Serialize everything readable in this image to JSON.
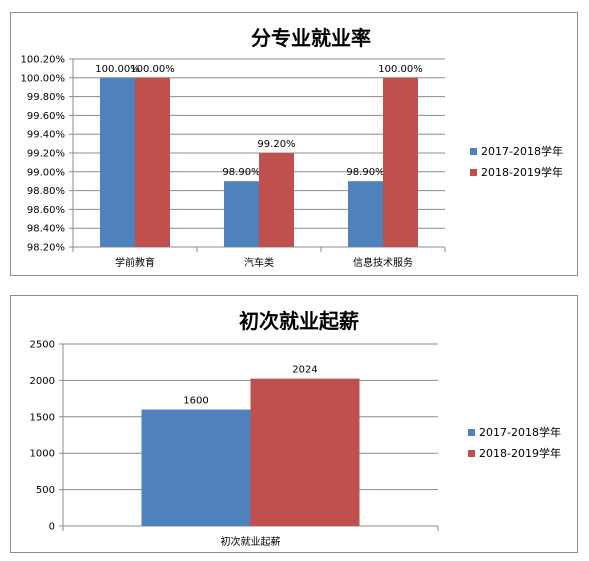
{
  "chart_data": [
    {
      "type": "bar",
      "title": "分专业就业率",
      "categories": [
        "学前教育",
        "汽车类",
        "信息技术服务"
      ],
      "series": [
        {
          "name": "2017-2018学年",
          "values": [
            100.0,
            98.9,
            98.9
          ],
          "labels": [
            "100.00%",
            "98.90%",
            "98.90%"
          ]
        },
        {
          "name": "2018-2019学年",
          "values": [
            100.0,
            99.2,
            100.0
          ],
          "labels": [
            "100.00%",
            "99.20%",
            "100.00%"
          ]
        }
      ],
      "ylim": [
        98.2,
        100.2
      ],
      "yticks": [
        "98.20%",
        "98.40%",
        "98.60%",
        "98.80%",
        "99.00%",
        "99.20%",
        "99.40%",
        "99.60%",
        "99.80%",
        "100.00%",
        "100.20%"
      ],
      "ytick_values": [
        98.2,
        98.4,
        98.6,
        98.8,
        99.0,
        99.2,
        99.4,
        99.6,
        99.8,
        100.0,
        100.2
      ],
      "grid": true,
      "legend": "right"
    },
    {
      "type": "bar",
      "title": "初次就业起薪",
      "categories": [
        "初次就业起薪"
      ],
      "series": [
        {
          "name": "2017-2018学年",
          "values": [
            1600
          ],
          "labels": [
            "1600"
          ]
        },
        {
          "name": "2018-2019学年",
          "values": [
            2024
          ],
          "labels": [
            "2024"
          ]
        }
      ],
      "ylim": [
        0,
        2500
      ],
      "yticks": [
        "0",
        "500",
        "1000",
        "1500",
        "2000",
        "2500"
      ],
      "ytick_values": [
        0,
        500,
        1000,
        1500,
        2000,
        2500
      ],
      "grid": true,
      "legend": "right"
    }
  ],
  "colors": {
    "series1": "#4f81bd",
    "series2": "#c0504d",
    "grid": "#8c8c8c",
    "axis": "#8c8c8c"
  }
}
